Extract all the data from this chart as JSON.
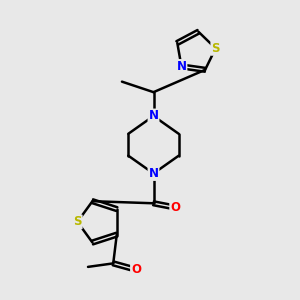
{
  "bg_color": "#e8e8e8",
  "bond_color": "#000000",
  "bond_width": 1.8,
  "atom_colors": {
    "N": "#0000ff",
    "S": "#b8b800",
    "O": "#ff0000",
    "C": "#000000"
  },
  "font_size": 8.5,
  "xlim": [
    1.5,
    8.5
  ],
  "ylim": [
    0.8,
    9.2
  ]
}
